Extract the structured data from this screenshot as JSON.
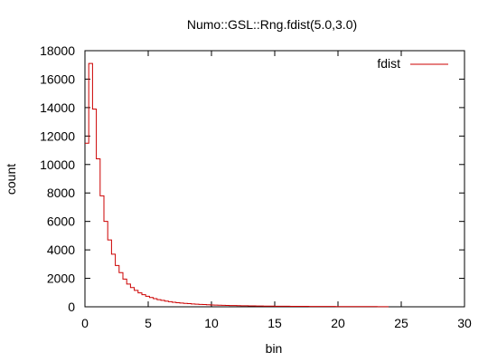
{
  "chart_data": {
    "type": "line",
    "style": "step",
    "title": "Numo::GSL::Rng.fdist(5.0,3.0)",
    "xlabel": "bin",
    "ylabel": "count",
    "xlim": [
      0,
      30
    ],
    "ylim": [
      0,
      18000
    ],
    "xticks": [
      "0",
      "5",
      "10",
      "15",
      "20",
      "25",
      "30"
    ],
    "yticks": [
      "0",
      "2000",
      "4000",
      "6000",
      "8000",
      "10000",
      "12000",
      "14000",
      "16000",
      "18000"
    ],
    "grid": false,
    "legend_position": "top-right",
    "colors": {
      "series": "#cc0000",
      "axes": "#000000"
    },
    "series": [
      {
        "name": "fdist",
        "bin_width": 0.3,
        "x": [
          0.15,
          0.45,
          0.75,
          1.05,
          1.35,
          1.65,
          1.95,
          2.25,
          2.55,
          2.85,
          3.15,
          3.45,
          3.75,
          4.05,
          4.35,
          4.65,
          4.95,
          5.25,
          5.55,
          5.85,
          6.15,
          6.45,
          6.75,
          7.05,
          7.35,
          7.65,
          7.95,
          8.25,
          8.55,
          8.85,
          9.15,
          9.45,
          9.75,
          10.05,
          10.35,
          10.65,
          10.95,
          11.25,
          11.55,
          11.85,
          12.15,
          12.45,
          12.75,
          13.05,
          13.35,
          13.65,
          13.95,
          14.25,
          14.55,
          14.85,
          15.15,
          15.45,
          15.75,
          16.05,
          16.35,
          16.65,
          16.95,
          17.25,
          17.55,
          17.85,
          18.15,
          18.45,
          18.75,
          19.05,
          19.35,
          19.65,
          19.95,
          20.25,
          20.55,
          20.85,
          21.15,
          21.45,
          21.75,
          22.05,
          22.35,
          22.65,
          22.95,
          23.25,
          23.55,
          23.85
        ],
        "y": [
          11500,
          17100,
          13900,
          10400,
          7800,
          6000,
          4700,
          3700,
          2900,
          2400,
          1950,
          1600,
          1350,
          1150,
          980,
          850,
          740,
          650,
          570,
          500,
          450,
          400,
          360,
          320,
          290,
          260,
          240,
          220,
          200,
          185,
          170,
          155,
          140,
          130,
          120,
          110,
          100,
          95,
          90,
          85,
          80,
          75,
          70,
          65,
          60,
          57,
          54,
          51,
          48,
          45,
          43,
          41,
          39,
          37,
          35,
          33,
          31,
          30,
          28,
          27,
          26,
          25,
          24,
          23,
          22,
          21,
          20,
          19,
          18,
          17,
          16,
          15,
          14,
          14,
          13,
          12,
          12,
          11,
          10,
          10
        ]
      }
    ]
  }
}
